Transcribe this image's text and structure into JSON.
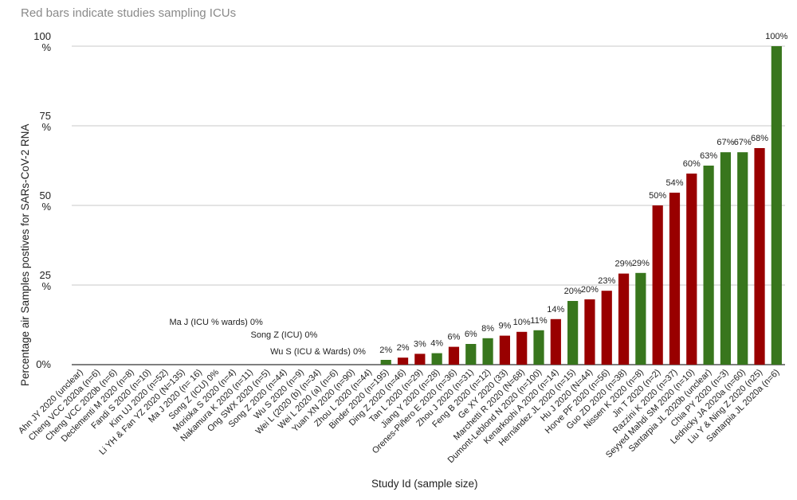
{
  "chart_data": {
    "type": "bar",
    "subtitle": "Red bars indicate  studies sampling ICUs",
    "xlabel": "Study Id (sample size)",
    "ylabel": "Percentage air Samples  postives for SARs-CoV-2 RNA",
    "ylim": [
      0,
      100
    ],
    "yticks": [
      {
        "value": 0,
        "label": "0%"
      },
      {
        "value": 25,
        "label": "25 %"
      },
      {
        "value": 50,
        "label": "50 %"
      },
      {
        "value": 75,
        "label": "75 %"
      },
      {
        "value": 100,
        "label": "100 %"
      }
    ],
    "grid": true,
    "colors": {
      "icu": "#990000",
      "other": "#38761d"
    },
    "categories": [
      "Ahn JY 2020 (unclear)",
      "Cheng VCC 2020a (n=6)",
      "Cheng VCC 2020b (n=6)",
      "Declementi M 2020 (n=8)",
      "Fandi S 2020 (n=10)",
      "Kim UJ 2020 (n=52)",
      "Li YH & Fan YZ 2020 (N=135)",
      "Ma J 2020 (n= 16)",
      "Song Z (ICU) 0%",
      "Morioka S 2020 (n=4)",
      "Nakamura K 2020 (n=11)",
      "Ong SWX 2020 (n=5)",
      "Song Z 2020 (n=44)",
      "Wu S 2020 (n=9)",
      "Wei L (2020 (b) (n=34)",
      "Wei L 2020 (a) (n=6)",
      "Yuan XN 2020 (n=90)",
      "Zhou L 2020 (n=44)",
      "Binder 2020 (n=195)",
      "Ding Z 2020 (n=46)",
      "Tan  L 2020 (n=29)",
      "Jiang Y 2020 (n=28)",
      "Orenes-Piñero E 2020 (n=36)",
      "Zhou J 2020 (n=31)",
      "Feng B 2020 (n=12)",
      "Ge XY 2020 (33)",
      "Marchetti R 2020 (N=68)",
      "Dumont-Leblond N 2020 (n=100)",
      "Kenarkoohi A 2020 (n=14)",
      "Hernández JL 2020 (n=15)",
      "Hu J 2020 (N=44)",
      "Horve PF 2020 (n=56)",
      "Guo ZD 2020 (n=38)",
      "Nissen K 2020 (n=8)",
      "Jin T 2020 (n=2)",
      "Razzini K 2020 (n=37)",
      "Seyyed Mahdi SM 2020 (n=10)",
      "Santarpia JL 2020b (unclear)",
      "Chia PY 2020 (n=3)",
      "Lednicky JA 2020a (n=60)",
      "Liu Y & Ning Z 2020 (n25)",
      "Santarpia JL 2020a (n=6)"
    ],
    "values": [
      0,
      0,
      0,
      0,
      0,
      0,
      0,
      0,
      0,
      0,
      0,
      0,
      0,
      0,
      0,
      0,
      0,
      0,
      1.5,
      2.2,
      3.4,
      3.6,
      5.6,
      6.5,
      8.3,
      9.1,
      10.3,
      10.8,
      14.3,
      20.0,
      20.5,
      23.2,
      28.6,
      28.8,
      50.0,
      54.0,
      60.0,
      62.5,
      66.7,
      66.7,
      68.0,
      100.0
    ],
    "groups": [
      "other",
      "other",
      "other",
      "other",
      "other",
      "other",
      "other",
      "other",
      "other",
      "other",
      "other",
      "other",
      "other",
      "other",
      "other",
      "other",
      "other",
      "other",
      "other",
      "icu",
      "icu",
      "other",
      "icu",
      "other",
      "other",
      "icu",
      "icu",
      "other",
      "icu",
      "other",
      "icu",
      "icu",
      "icu",
      "other",
      "icu",
      "icu",
      "icu",
      "other",
      "other",
      "other",
      "icu",
      "other"
    ],
    "data_labels": [
      "",
      "",
      "",
      "",
      "",
      "",
      "",
      "",
      "",
      "",
      "",
      "",
      "",
      "",
      "",
      "",
      "",
      "",
      "2%",
      "2%",
      "3%",
      "4%",
      "6%",
      "6%",
      "8%",
      "9%",
      "10%",
      "11%",
      "14%",
      "20%",
      "20%",
      "23%",
      "29%",
      "29%",
      "50%",
      "54%",
      "60%",
      "63%",
      "67%",
      "67%",
      "68%",
      "100%"
    ],
    "annotations": [
      {
        "text": "Ma J (ICU % wards) 0%",
        "category_index": 8,
        "value": 12.5
      },
      {
        "text": "Song Z (ICU) 0%",
        "category_index": 12,
        "value": 8.5
      },
      {
        "text": "Wu S (ICU & Wards) 0%",
        "category_index": 14,
        "value": 3.3
      }
    ]
  }
}
